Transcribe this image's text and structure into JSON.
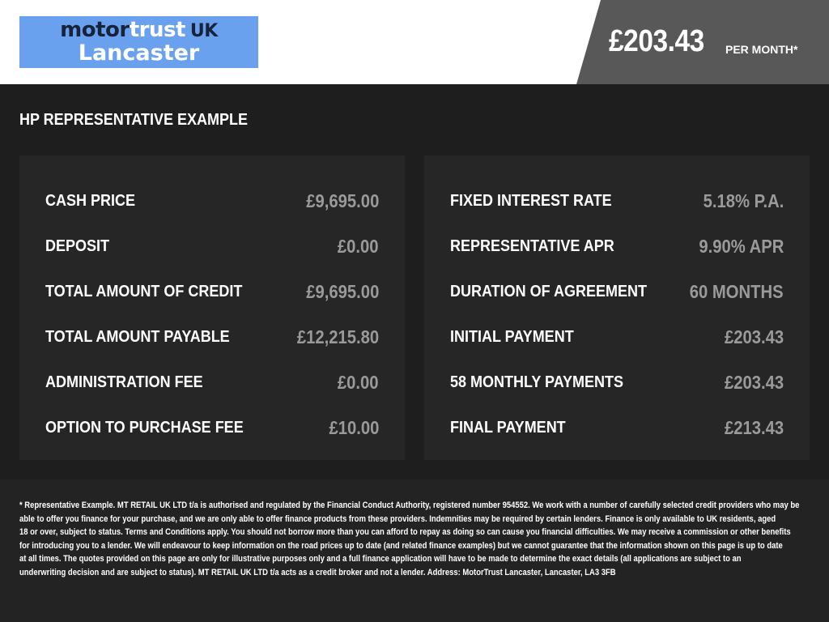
{
  "header": {
    "logo": {
      "motor": "motor",
      "trust": "trust",
      "uk": "UK",
      "location": "Lancaster"
    },
    "monthly_price": "£203.43",
    "per_month": "PER MONTH*"
  },
  "section_title": "HP REPRESENTATIVE EXAMPLE",
  "left_panel": [
    {
      "label": "CASH PRICE",
      "value": "£9,695.00"
    },
    {
      "label": "DEPOSIT",
      "value": "£0.00"
    },
    {
      "label": "TOTAL AMOUNT OF CREDIT",
      "value": "£9,695.00"
    },
    {
      "label": "TOTAL AMOUNT PAYABLE",
      "value": "£12,215.80"
    },
    {
      "label": "ADMINISTRATION FEE",
      "value": "£0.00"
    },
    {
      "label": "OPTION TO PURCHASE FEE",
      "value": "£10.00"
    }
  ],
  "right_panel": [
    {
      "label": "FIXED INTEREST RATE",
      "value": "5.18% P.A."
    },
    {
      "label": "REPRESENTATIVE APR",
      "value": "9.90% APR"
    },
    {
      "label": "DURATION OF AGREEMENT",
      "value": "60 MONTHS"
    },
    {
      "label": "INITIAL PAYMENT",
      "value": "£203.43"
    },
    {
      "label": "58 MONTHLY PAYMENTS",
      "value": "£203.43"
    },
    {
      "label": "FINAL PAYMENT",
      "value": "£213.43"
    }
  ],
  "disclaimer_lines": [
    "* Representative Example. MT RETAIL UK LTD t/a is authorised and regulated by the Financial Conduct Authority, registered number 954552. We work with a number of carefully selected credit providers who may be",
    "able to offer you finance for your purchase, and we are only able to offer finance products from these providers. Indemnities may be required by certain lenders. Finance is only available to UK residents, aged",
    "18 or over, subject to status. Terms and Conditions apply. You should not borrow more than you can afford to repay as doing so can cause you financial difficulties. We may receive a commission or other benefits",
    "for introducing you to a lender. We will endeavour to keep information on the road prices up to date (and related finance examples) but we cannot guarantee that the information shown on this page is up to date",
    "at all times. The quotes provided on this page are only for illustrative purposes only and a full finance application will have to be made to determine the exact details (all applications are subject to an",
    "underwriting decision and are subject to status). MT RETAIL UK LTD t/a acts as a credit broker and not a lender. Address: MotorTrust Lancaster, Lancaster, LA3 3FB"
  ]
}
